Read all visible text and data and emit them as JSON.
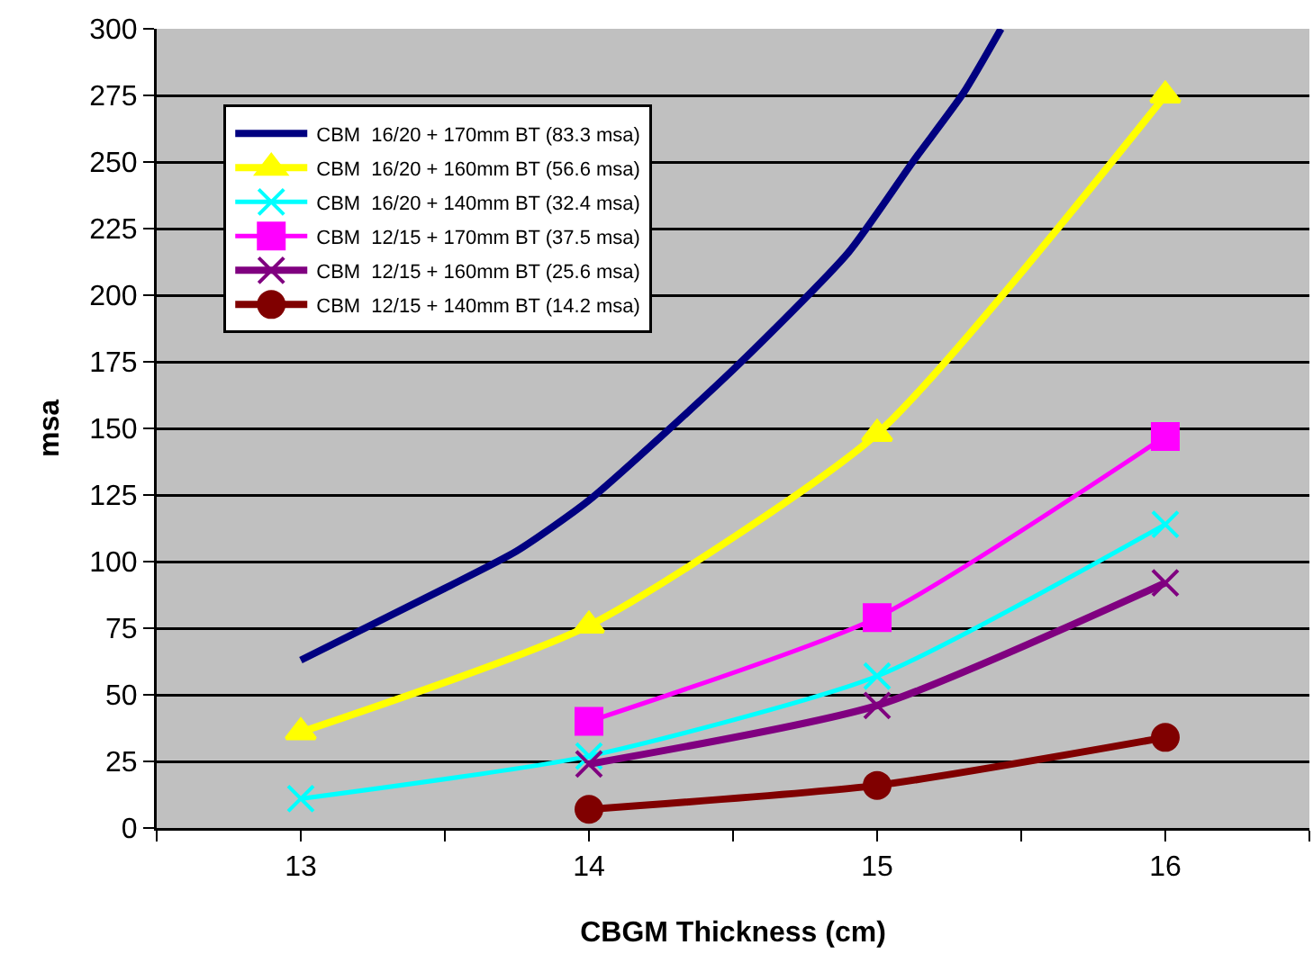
{
  "chart_data": {
    "type": "line",
    "xlabel": "CBGM Thickness (cm)",
    "ylabel": "msa",
    "xlim": [
      12.5,
      16.5
    ],
    "xticks": [
      {
        "value": 12.5,
        "label": null
      },
      13,
      {
        "value": 13.5,
        "label": null
      },
      14,
      {
        "value": 14.5,
        "label": null
      },
      15,
      {
        "value": 15.5,
        "label": null
      },
      16,
      {
        "value": 16.5,
        "label": null
      }
    ],
    "ylim": [
      0,
      300
    ],
    "yticks": [
      0,
      25,
      50,
      75,
      100,
      125,
      150,
      175,
      200,
      225,
      250,
      275,
      300
    ],
    "grid": "y",
    "legend": "top left",
    "line_style": "solid",
    "series": [
      {
        "name": "CBM  16/20 + 170mm BT (83.3 msa)",
        "color": "#000080",
        "marker": "none",
        "x": [
          13,
          13.5,
          13.75,
          14,
          14.5,
          14.9,
          15.13,
          15.3,
          15.43
        ],
        "values": [
          63,
          90,
          104,
          123,
          172,
          216,
          251,
          276,
          300
        ]
      },
      {
        "name": "CBM  16/20 + 160mm BT (56.6 msa)",
        "color": "#ffff00",
        "marker": "triangle",
        "x": [
          13,
          14,
          15,
          16
        ],
        "values": [
          36,
          76,
          148,
          275
        ]
      },
      {
        "name": "CBM  16/20 + 140mm BT (32.4 msa)",
        "color": "#00ffff",
        "marker": "cross",
        "x": [
          13,
          14,
          15,
          16
        ],
        "values": [
          11,
          27,
          57,
          114
        ]
      },
      {
        "name": "CBM  12/15 + 170mm BT (37.5 msa)",
        "color": "#ff00ff",
        "marker": "square",
        "x": [
          14,
          15,
          16
        ],
        "values": [
          40,
          79,
          147
        ]
      },
      {
        "name": "CBM  12/15 + 160mm BT (25.6 msa)",
        "color": "#800080",
        "marker": "cross",
        "x": [
          14,
          15,
          16
        ],
        "values": [
          24,
          46,
          92
        ]
      },
      {
        "name": "CBM  12/15 + 140mm BT (14.2 msa)",
        "color": "#800000",
        "marker": "circle",
        "x": [
          14,
          15,
          16
        ],
        "values": [
          7,
          16,
          34
        ]
      }
    ]
  }
}
